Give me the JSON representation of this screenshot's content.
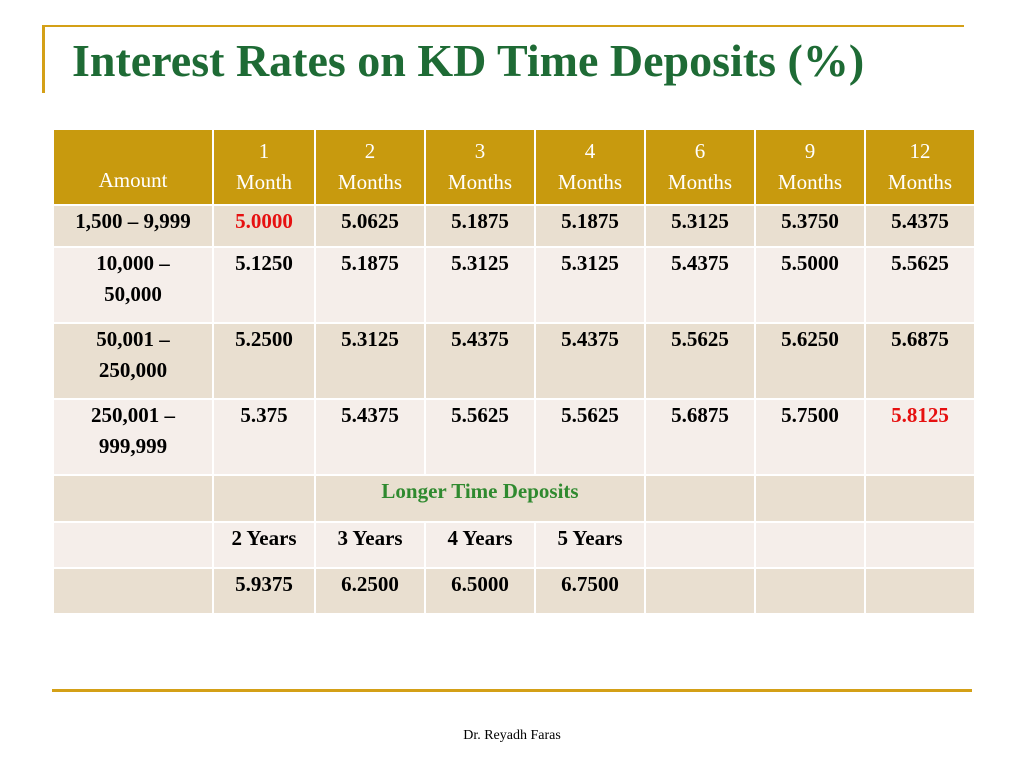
{
  "title": "Interest Rates on KD Time  Deposits (%)",
  "header": {
    "amount": "Amount",
    "periods": [
      {
        "num": "1",
        "unit": "Month"
      },
      {
        "num": "2",
        "unit": "Months"
      },
      {
        "num": "3",
        "unit": "Months"
      },
      {
        "num": "4",
        "unit": "Months"
      },
      {
        "num": "6",
        "unit": "Months"
      },
      {
        "num": "9",
        "unit": "Months"
      },
      {
        "num": "12",
        "unit": "Months"
      }
    ]
  },
  "rows": [
    {
      "amount_l1": "1,500 – 9,999",
      "amount_l2": "",
      "rates": [
        "5.0000",
        "5.0625",
        "5.1875",
        "5.1875",
        "5.3125",
        "5.3750",
        "5.4375"
      ]
    },
    {
      "amount_l1": "10,000 –",
      "amount_l2": "50,000",
      "rates": [
        "5.1250",
        "5.1875",
        "5.3125",
        "5.3125",
        "5.4375",
        "5.5000",
        "5.5625"
      ]
    },
    {
      "amount_l1": "50,001 –",
      "amount_l2": "250,000",
      "rates": [
        "5.2500",
        "5.3125",
        "5.4375",
        "5.4375",
        "5.5625",
        "5.6250",
        "5.6875"
      ]
    },
    {
      "amount_l1": "250,001 –",
      "amount_l2": "999,999",
      "rates": [
        "5.375",
        "5.4375",
        "5.5625",
        "5.5625",
        "5.6875",
        "5.7500",
        "5.8125"
      ]
    }
  ],
  "highlight_color": "#e61010",
  "longer": {
    "label": "Longer Time Deposits",
    "years": [
      "2 Years",
      "3 Years",
      "4 Years",
      "5 Years"
    ],
    "rates": [
      "5.9375",
      "6.2500",
      "6.5000",
      "6.7500"
    ]
  },
  "colors": {
    "title": "#1e6b35",
    "header_bg": "#c89a0e",
    "accent_line": "#d4a017",
    "longer_label": "#2f8a2f"
  },
  "footer": "Dr. Reyadh Faras"
}
